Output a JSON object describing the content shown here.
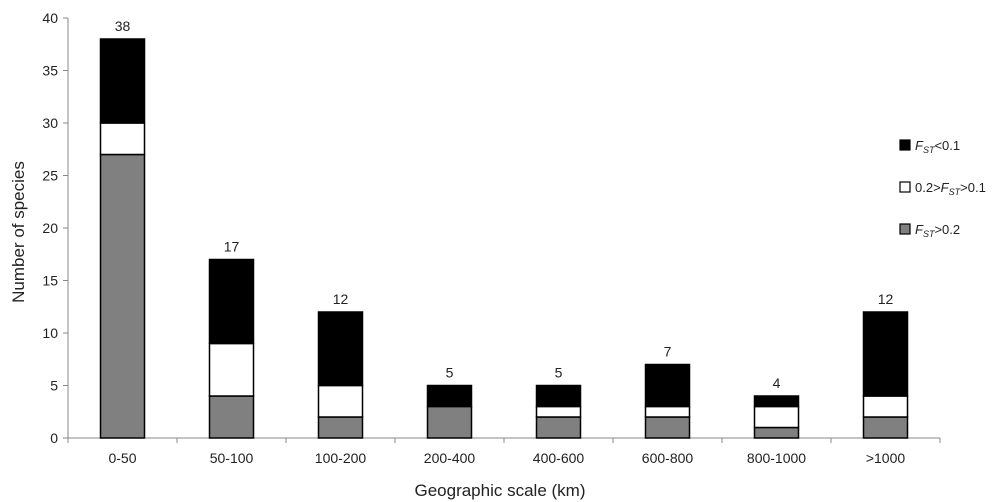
{
  "chart_data": {
    "type": "bar",
    "stacked": true,
    "categories": [
      "0-50",
      "50-100",
      "100-200",
      "200-400",
      "400-600",
      "600-800",
      "800-1000",
      ">1000"
    ],
    "series": [
      {
        "name": "F_ST>0.2",
        "legend_parts": [
          {
            "text": "F",
            "style": "italic"
          },
          {
            "text": "ST",
            "style": "sub-italic"
          },
          {
            "text": ">0.2",
            "style": "normal"
          }
        ],
        "color": "#808080",
        "values": [
          27,
          4,
          2,
          3,
          2,
          2,
          1,
          2
        ]
      },
      {
        "name": "0.2>F_ST>0.1",
        "legend_parts": [
          {
            "text": "0.2>",
            "style": "normal"
          },
          {
            "text": "F",
            "style": "italic"
          },
          {
            "text": "ST",
            "style": "sub-italic"
          },
          {
            "text": ">0.1",
            "style": "normal"
          }
        ],
        "color": "#ffffff",
        "values": [
          3,
          5,
          3,
          0,
          1,
          1,
          2,
          2
        ]
      },
      {
        "name": "F_ST<0.1",
        "legend_parts": [
          {
            "text": "F",
            "style": "italic"
          },
          {
            "text": "ST",
            "style": "sub-italic"
          },
          {
            "text": "<0.1",
            "style": "normal"
          }
        ],
        "color": "#000000",
        "values": [
          8,
          8,
          7,
          2,
          2,
          4,
          1,
          8
        ]
      }
    ],
    "totals": [
      38,
      17,
      12,
      5,
      5,
      7,
      4,
      12
    ],
    "legend_order": [
      2,
      1,
      0
    ],
    "xlabel": "Geographic scale (km)",
    "ylabel": "Number of species",
    "ylim": [
      0,
      40
    ],
    "yticks": [
      0,
      5,
      10,
      15,
      20,
      25,
      30,
      35,
      40
    ],
    "grid": false,
    "legend_position": "right"
  }
}
